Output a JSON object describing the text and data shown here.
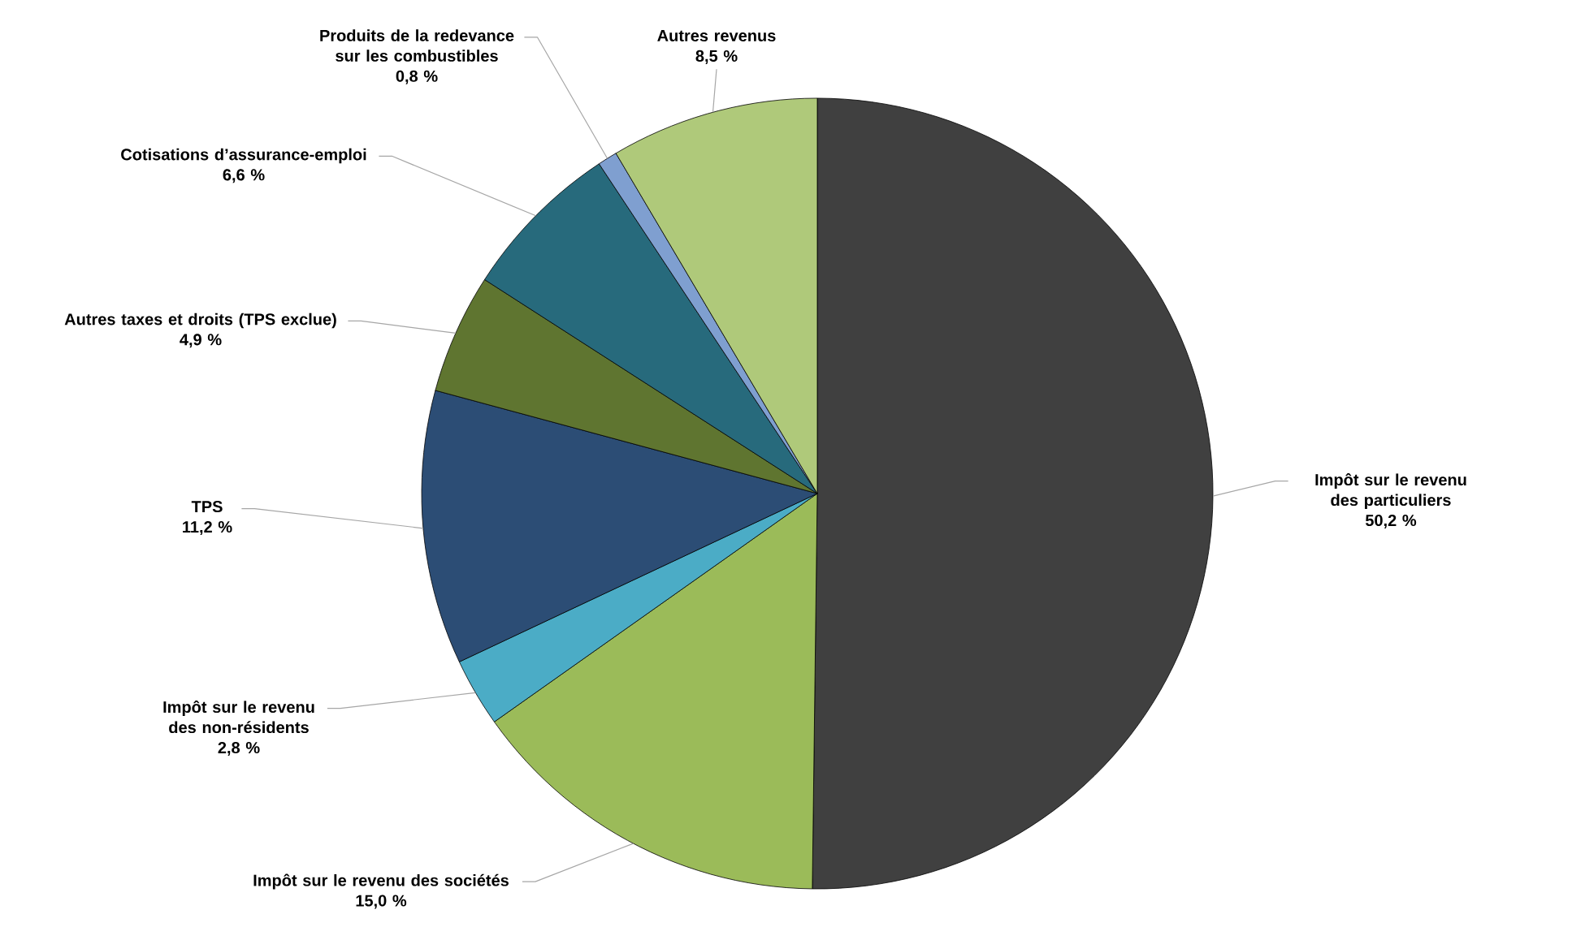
{
  "chart_data": {
    "type": "pie",
    "categories": [
      "Impôt sur le revenu des particuliers",
      "Impôt sur le revenu des sociétés",
      "Impôt sur le revenu des non-résidents",
      "TPS",
      "Autres taxes et droits (TPS exclue)",
      "Cotisations d’assurance-emploi",
      "Produits de la redevance sur les combustibles",
      "Autres revenus"
    ],
    "values": [
      50.2,
      15.0,
      2.8,
      11.2,
      4.9,
      6.6,
      0.8,
      8.5
    ],
    "value_labels": [
      "50,2 %",
      "15,0 %",
      "2,8 %",
      "11,2 %",
      "4,9 %",
      "6,6 %",
      "0,8 %",
      "8,5 %"
    ],
    "colors": [
      "#404040",
      "#9bbb59",
      "#4bacc6",
      "#2c4d75",
      "#5f7530",
      "#276a7c",
      "#7f9fd0",
      "#afc97a"
    ]
  }
}
